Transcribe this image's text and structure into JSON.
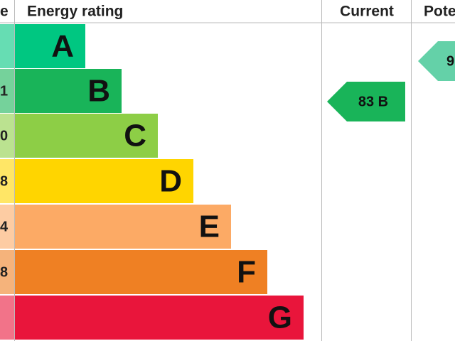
{
  "header": {
    "score": "e",
    "rating": "Energy rating",
    "current": "Current",
    "potential": "Pote"
  },
  "bands": [
    {
      "score": "",
      "letter": "A",
      "color": "#00c781"
    },
    {
      "score": "1",
      "letter": "B",
      "color": "#19b459"
    },
    {
      "score": "0",
      "letter": "C",
      "color": "#8dce46"
    },
    {
      "score": "8",
      "letter": "D",
      "color": "#ffd500"
    },
    {
      "score": "4",
      "letter": "E",
      "color": "#fcaa65"
    },
    {
      "score": "8",
      "letter": "F",
      "color": "#ef8023"
    },
    {
      "score": "",
      "letter": "G",
      "color": "#e9153b"
    }
  ],
  "current": {
    "label": "83 B",
    "color": "#19b459"
  },
  "potential": {
    "label": "9",
    "color": "#64d1a8"
  }
}
